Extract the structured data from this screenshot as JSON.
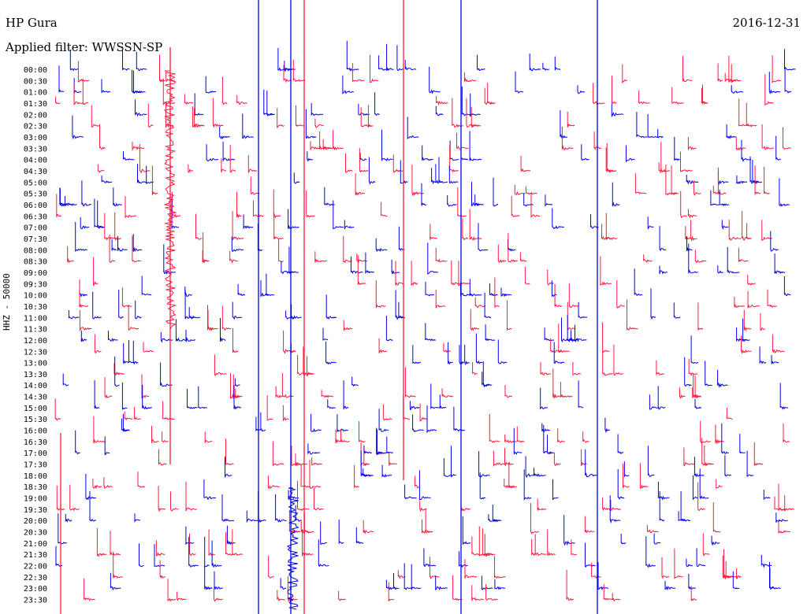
{
  "header": {
    "station": "HP Gura",
    "date": "2016-12-31",
    "filter_label": "Applied filter: WWSSN-SP"
  },
  "chart_data": {
    "type": "helicorder",
    "ylabel": "HHZ - 50000",
    "colors": {
      "even_row": "#0000ee",
      "odd_row": "#ff1a3d"
    },
    "row_labels": [
      "00:00",
      "00:30",
      "01:00",
      "01:30",
      "02:00",
      "02:30",
      "03:00",
      "03:30",
      "04:00",
      "04:30",
      "05:00",
      "05:30",
      "06:00",
      "06:30",
      "07:00",
      "07:30",
      "08:00",
      "08:30",
      "09:00",
      "09:30",
      "10:00",
      "10:30",
      "11:00",
      "11:30",
      "12:00",
      "12:30",
      "13:00",
      "13:30",
      "14:00",
      "14:30",
      "15:00",
      "15:30",
      "16:00",
      "16:30",
      "17:00",
      "17:30",
      "18:00",
      "18:30",
      "19:00",
      "19:30",
      "20:00",
      "20:30",
      "21:00",
      "21:30",
      "22:00",
      "22:30",
      "23:00",
      "23:30"
    ],
    "minutes_per_row": 30,
    "grid": false
  }
}
